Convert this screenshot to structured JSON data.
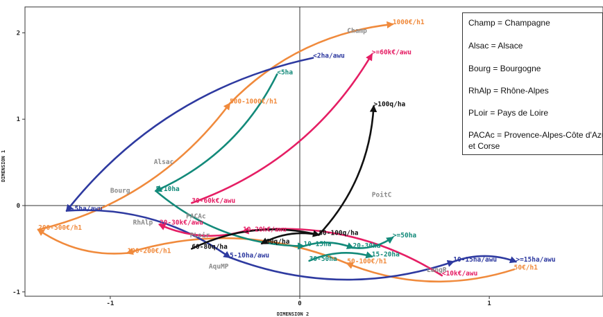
{
  "chart_data": {
    "type": "scatter",
    "xlabel": "DIMENSION 2",
    "ylabel": "DIMENSION 1",
    "xlim": [
      -1.45,
      1.6
    ],
    "ylim": [
      -1.05,
      2.3
    ],
    "x_ticks": [
      -1,
      0,
      1
    ],
    "y_ticks": [
      -1,
      0,
      1,
      2
    ],
    "grid": false,
    "legend_position": "top-right",
    "legend": [
      "Champ = Champagne",
      "Alsac = Alsace",
      "Bourg = Bourgogne",
      "RhAlp = Rhône-Alpes",
      "PLoir = Pays de Loire",
      "PACAc = Provence-Alpes-Côte d'Azur et Corse"
    ],
    "colors": {
      "area": "#2e3aa0",
      "yield": "#111111",
      "price": "#f08a3c",
      "size": "#138a7a",
      "income": "#e51e64",
      "region": "#8a8a8a"
    },
    "points": [
      {
        "label": "Champ",
        "x": 0.25,
        "y": 2.0,
        "group": "region"
      },
      {
        "label": "Alsac",
        "x": -0.77,
        "y": 0.48,
        "group": "region"
      },
      {
        "label": "Bourg",
        "x": -1.0,
        "y": 0.15,
        "group": "region"
      },
      {
        "label": "RhAlp",
        "x": -0.88,
        "y": -0.22,
        "group": "region"
      },
      {
        "label": "PACAc",
        "x": -0.6,
        "y": -0.15,
        "group": "region"
      },
      {
        "label": "PLoir",
        "x": -0.58,
        "y": -0.37,
        "group": "region"
      },
      {
        "label": "AquMP",
        "x": -0.48,
        "y": -0.73,
        "group": "region"
      },
      {
        "label": "PoitC",
        "x": 0.38,
        "y": 0.1,
        "group": "region"
      },
      {
        "label": "LangR",
        "x": 0.67,
        "y": -0.77,
        "group": "region"
      },
      {
        "label": "1000€/h1",
        "x": 0.49,
        "y": 2.1,
        "group": "price"
      },
      {
        "label": "500-1000€/h1",
        "x": -0.37,
        "y": 1.18,
        "group": "price"
      },
      {
        "label": "200-500€/h1",
        "x": -1.38,
        "y": -0.28,
        "group": "price"
      },
      {
        "label": "100-200€/h1",
        "x": -0.91,
        "y": -0.55,
        "group": "price"
      },
      {
        "label": "50-100€/h1",
        "x": 0.25,
        "y": -0.67,
        "group": "price"
      },
      {
        "label": "50€/h1",
        "x": 1.13,
        "y": -0.74,
        "group": "price"
      },
      {
        "label": "<2ha/awu",
        "x": 0.07,
        "y": 1.71,
        "group": "area"
      },
      {
        "label": "2-5ha/awu",
        "x": -1.23,
        "y": -0.06,
        "group": "area"
      },
      {
        "label": "5-10ha/awu",
        "x": -0.37,
        "y": -0.6,
        "group": "area"
      },
      {
        "label": "10-15ha/awu",
        "x": 0.81,
        "y": -0.65,
        "group": "area"
      },
      {
        "label": ">=15ha/awu",
        "x": 1.14,
        "y": -0.65,
        "group": "area"
      },
      {
        "label": ">=60k€/awu",
        "x": 0.38,
        "y": 1.75,
        "group": "income"
      },
      {
        "label": "30-60k€/awu",
        "x": -0.57,
        "y": 0.03,
        "group": "income"
      },
      {
        "label": "20-30k€/awu",
        "x": -0.74,
        "y": -0.22,
        "group": "income"
      },
      {
        "label": "10-20k€/awu",
        "x": -0.3,
        "y": -0.3,
        "group": "income"
      },
      {
        "label": "<10k€/awu",
        "x": 0.75,
        "y": -0.81,
        "group": "income"
      },
      {
        "label": "<5ha",
        "x": -0.12,
        "y": 1.52,
        "group": "size"
      },
      {
        "label": "5-10ha",
        "x": -0.76,
        "y": 0.17,
        "group": "size"
      },
      {
        "label": "10-15ha",
        "x": 0.02,
        "y": -0.47,
        "group": "size"
      },
      {
        "label": "15-20ha",
        "x": 0.38,
        "y": -0.59,
        "group": "size"
      },
      {
        "label": "20-30ha",
        "x": 0.28,
        "y": -0.49,
        "group": "size"
      },
      {
        "label": "30-50ha",
        "x": 0.05,
        "y": -0.64,
        "group": "size"
      },
      {
        "label": ">=50ha",
        "x": 0.49,
        "y": -0.37,
        "group": "size"
      },
      {
        "label": ">100q/ha",
        "x": 0.39,
        "y": 1.15,
        "group": "yield"
      },
      {
        "label": "80-100q/ha",
        "x": 0.1,
        "y": -0.34,
        "group": "yield"
      },
      {
        "label": "60-80q/ha",
        "x": -0.57,
        "y": -0.5,
        "group": "yield"
      },
      {
        "label": "<60q/ha",
        "x": -0.2,
        "y": -0.44,
        "group": "yield"
      }
    ],
    "trajectories": [
      {
        "group": "price",
        "from": "500-1000€/h1",
        "to": "1000€/h1"
      },
      {
        "group": "price",
        "from": "200-500€/h1",
        "to": "500-1000€/h1"
      },
      {
        "group": "price",
        "from": "100-200€/h1",
        "to": "200-500€/h1"
      },
      {
        "group": "price",
        "from": "50-100€/h1",
        "to": "100-200€/h1"
      },
      {
        "group": "price",
        "from": "50€/h1",
        "to": "50-100€/h1"
      },
      {
        "group": "area",
        "from": "<2ha/awu",
        "to": "2-5ha/awu"
      },
      {
        "group": "area",
        "from": "2-5ha/awu",
        "to": "5-10ha/awu"
      },
      {
        "group": "area",
        "from": "5-10ha/awu",
        "to": "10-15ha/awu"
      },
      {
        "group": "area",
        "from": "10-15ha/awu",
        "to": ">=15ha/awu"
      },
      {
        "group": "income",
        "from": "30-60k€/awu",
        "to": ">=60k€/awu"
      },
      {
        "group": "income",
        "from": "10-20k€/awu",
        "to": "20-30k€/awu"
      },
      {
        "group": "income",
        "from": "<10k€/awu",
        "to": "10-20k€/awu"
      },
      {
        "group": "size",
        "from": "<5ha",
        "to": "5-10ha"
      },
      {
        "group": "size",
        "from": "5-10ha",
        "to": "10-15ha"
      },
      {
        "group": "size",
        "from": "10-15ha",
        "to": "20-30ha"
      },
      {
        "group": "size",
        "from": "20-30ha",
        "to": ">=50ha"
      },
      {
        "group": "size",
        "from": "30-50ha",
        "to": "15-20ha"
      },
      {
        "group": "yield",
        "from": "80-100q/ha",
        "to": ">100q/ha"
      },
      {
        "group": "yield",
        "from": "60-80q/ha",
        "to": "80-100q/ha"
      },
      {
        "group": "yield",
        "from": "80-100q/ha",
        "to": "<60q/ha"
      }
    ]
  }
}
